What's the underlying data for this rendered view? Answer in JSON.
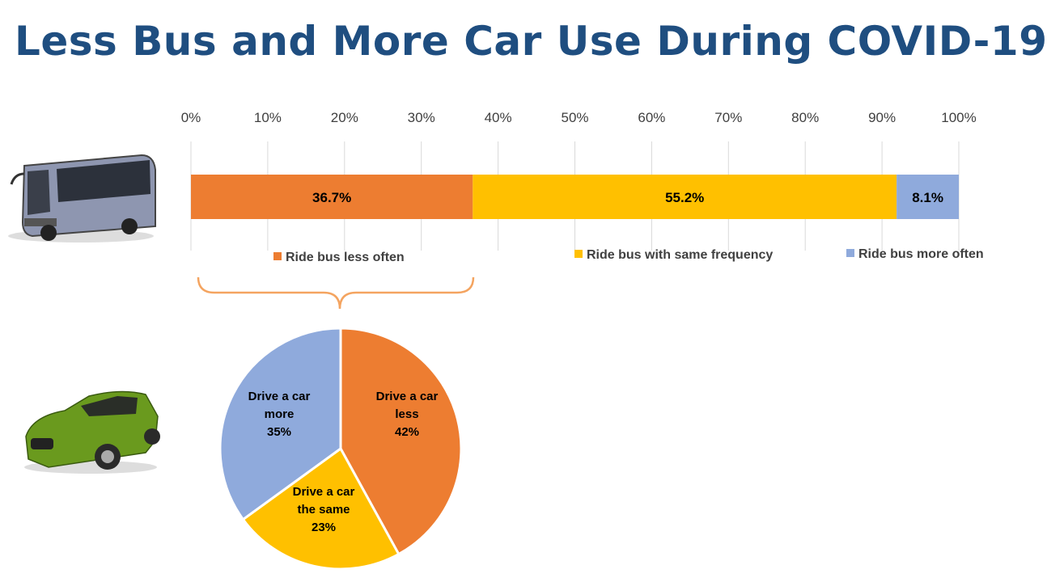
{
  "title": "Less Bus and More Car Use During COVID-19",
  "colors": {
    "orange": "#ED7D31",
    "yellow": "#FFC000",
    "blue": "#8FAADC",
    "title": "#1F4E80"
  },
  "chart_data": [
    {
      "type": "bar",
      "orientation": "horizontal-stacked-100",
      "xlim": [
        0,
        100
      ],
      "ticks": [
        "0%",
        "10%",
        "20%",
        "30%",
        "40%",
        "50%",
        "60%",
        "70%",
        "80%",
        "90%",
        "100%"
      ],
      "grid": true,
      "series": [
        {
          "name": "Ride bus less often",
          "value": 36.7,
          "label": "36.7%",
          "color": "#ED7D31"
        },
        {
          "name": "Ride bus with same frequency",
          "value": 55.2,
          "label": "55.2%",
          "color": "#FFC000"
        },
        {
          "name": "Ride bus more often",
          "value": 8.1,
          "label": "8.1%",
          "color": "#8FAADC"
        }
      ],
      "legend": "bottom"
    },
    {
      "type": "pie",
      "slices": [
        {
          "lines": [
            "Drive a car",
            "less",
            "42%"
          ],
          "value": 42,
          "color": "#ED7D31"
        },
        {
          "lines": [
            "Drive a car",
            "the same",
            "23%"
          ],
          "value": 23,
          "color": "#FFC000"
        },
        {
          "lines": [
            "Drive a car",
            "more",
            "35%"
          ],
          "value": 35,
          "color": "#8FAADC"
        }
      ]
    }
  ]
}
